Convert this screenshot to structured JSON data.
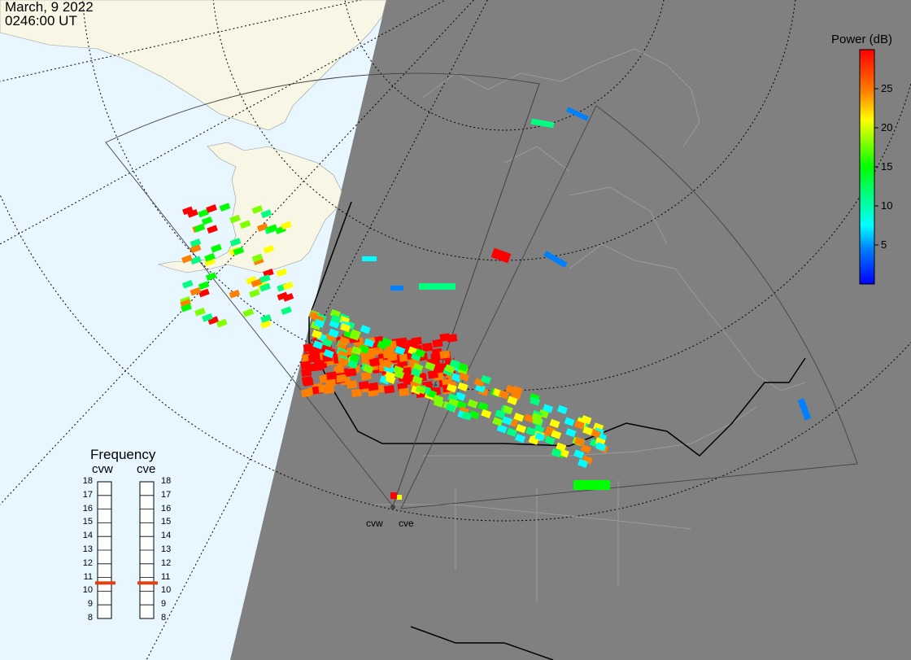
{
  "header": {
    "date": "March, 9 2022",
    "time": "0246:00 UT"
  },
  "colorbar": {
    "title": "Power (dB)",
    "ticks": [
      {
        "label": "25",
        "value": 25
      },
      {
        "label": "20",
        "value": 20
      },
      {
        "label": "15",
        "value": 15
      },
      {
        "label": "10",
        "value": 10
      },
      {
        "label": "5",
        "value": 5
      }
    ],
    "range": [
      0,
      30
    ],
    "colors": [
      "#0000ff",
      "#0080ff",
      "#00ffff",
      "#00ff80",
      "#00ff00",
      "#80ff00",
      "#ffff00",
      "#ff8000",
      "#ff0000"
    ]
  },
  "frequency_panel": {
    "title": "Frequency",
    "radars": [
      {
        "name": "cvw",
        "frequency_mhz": 10.6
      },
      {
        "name": "cve",
        "frequency_mhz": 10.6
      }
    ],
    "ticks": [
      "18",
      "17",
      "16",
      "15",
      "14",
      "13",
      "12",
      "11",
      "10",
      "9",
      "8"
    ],
    "range_mhz": [
      8,
      18
    ],
    "indicator_color": "#e04010"
  },
  "map": {
    "night_color": "#808080",
    "day_ocean_color": "#e8f6ff",
    "day_land_color": "#f8f6e4",
    "radar_sites": [
      {
        "name": "cvw"
      },
      {
        "name": "cve"
      }
    ]
  }
}
